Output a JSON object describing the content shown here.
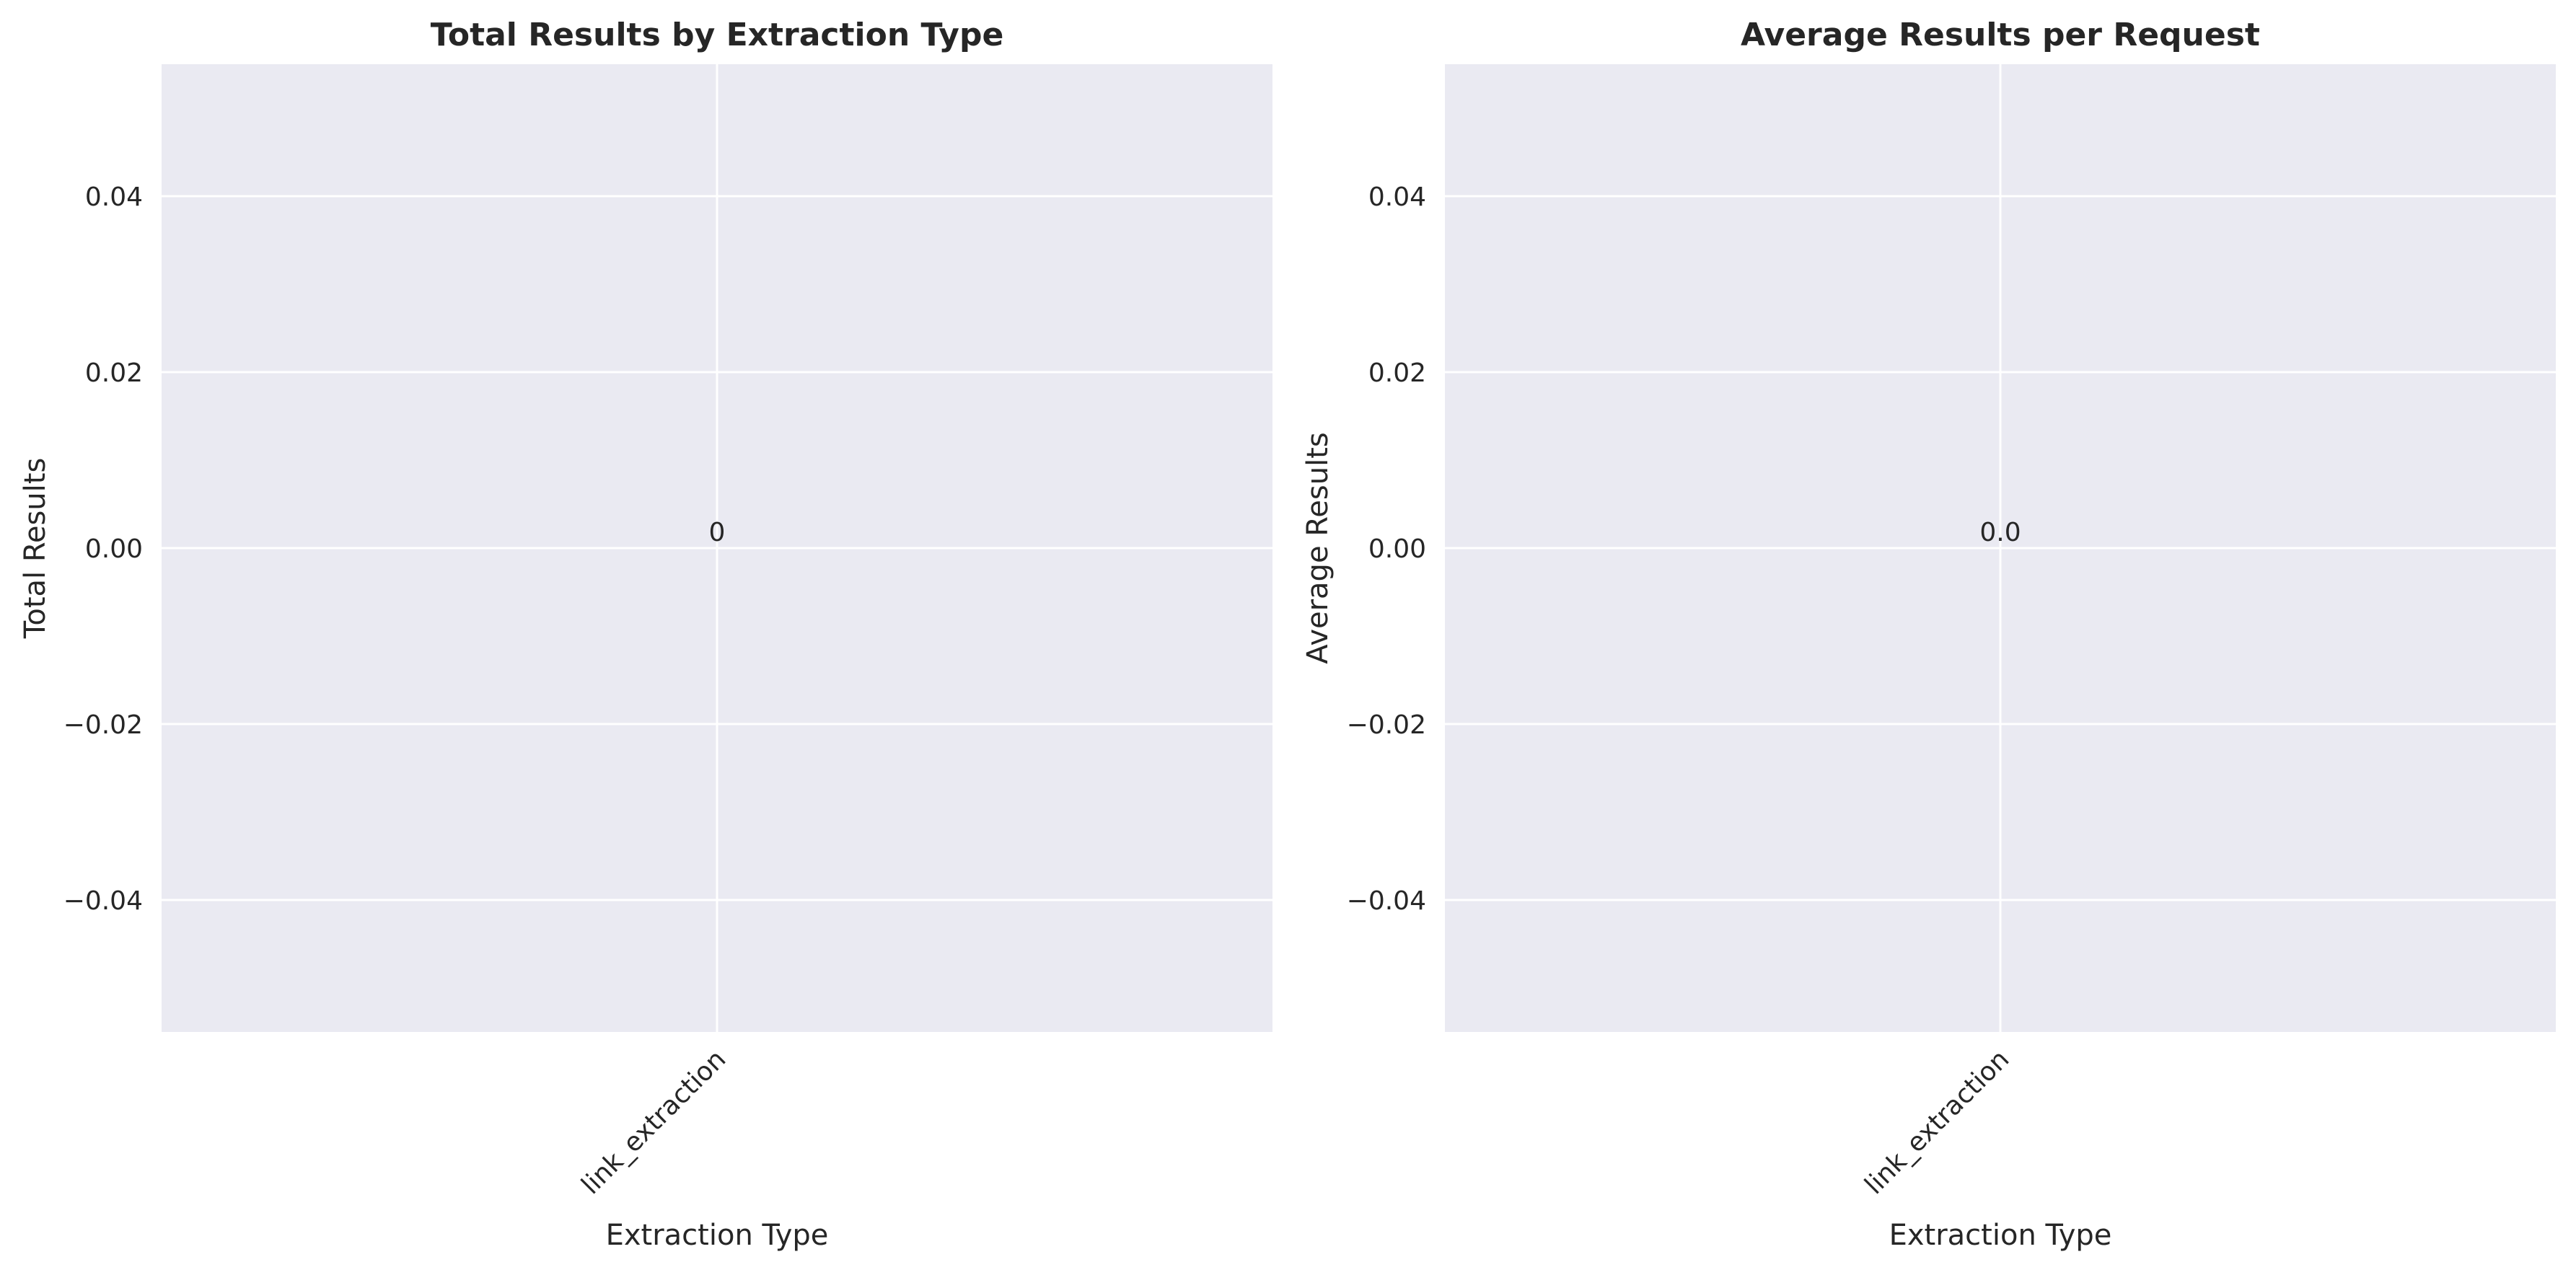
{
  "chart_data": [
    {
      "type": "bar",
      "title": "Total Results by Extraction Type",
      "xlabel": "Extraction Type",
      "ylabel": "Total Results",
      "categories": [
        "link_extraction"
      ],
      "values": [
        0
      ],
      "data_labels": [
        "0"
      ],
      "ylim": [
        -0.055,
        0.055
      ],
      "yticks": [
        0.04,
        0.02,
        0.0,
        -0.02,
        -0.04
      ],
      "ytick_labels": [
        "0.04",
        "0.02",
        "0.00",
        "−0.02",
        "−0.04"
      ],
      "xtick_rotation": -45,
      "grid": true,
      "legend": "none"
    },
    {
      "type": "bar",
      "title": "Average Results per Request",
      "xlabel": "Extraction Type",
      "ylabel": "Average Results",
      "categories": [
        "link_extraction"
      ],
      "values": [
        0.0
      ],
      "data_labels": [
        "0.0"
      ],
      "ylim": [
        -0.055,
        0.055
      ],
      "yticks": [
        0.04,
        0.02,
        0.0,
        -0.02,
        -0.04
      ],
      "ytick_labels": [
        "0.04",
        "0.02",
        "0.00",
        "−0.02",
        "−0.04"
      ],
      "xtick_rotation": -45,
      "grid": true,
      "legend": "none"
    }
  ],
  "colors": {
    "plot_background": "#EAEAF2",
    "grid": "#FFFFFF",
    "text": "#262626",
    "figure_background": "#FFFFFF"
  }
}
